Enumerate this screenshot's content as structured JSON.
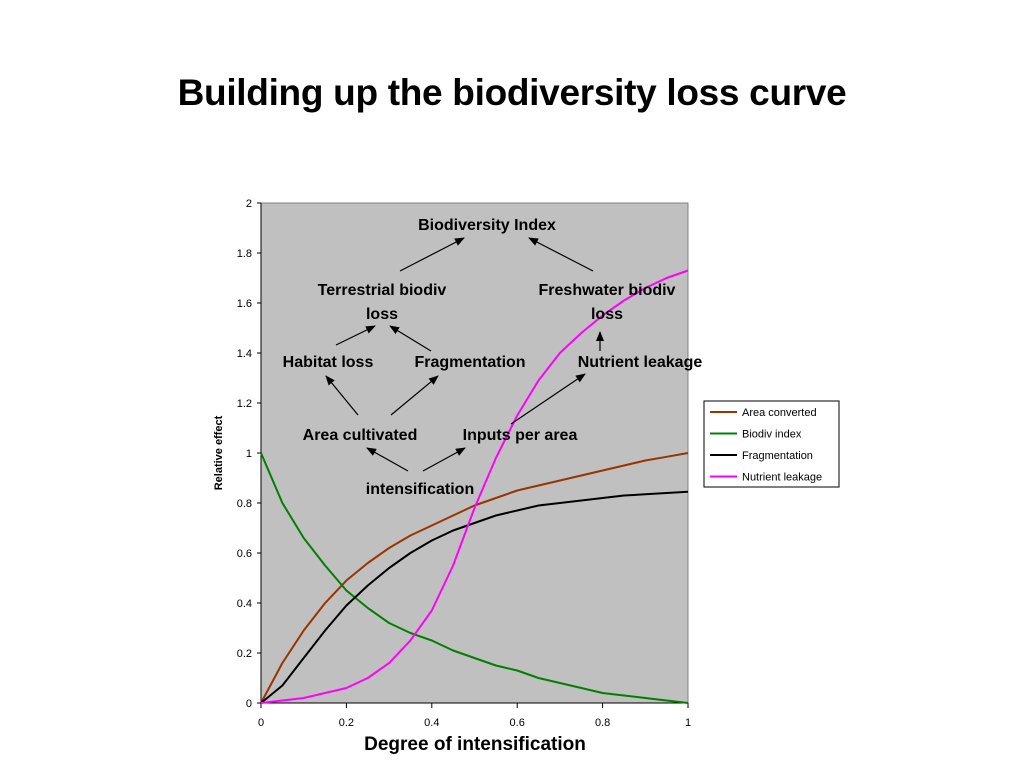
{
  "slide": {
    "title": "Building up the biodiversity loss curve"
  },
  "chart_data": {
    "type": "line",
    "xlabel": "Degree of intensification",
    "ylabel": "Relative effect",
    "xlim": [
      0,
      1
    ],
    "ylim": [
      0,
      2
    ],
    "x_ticks": [
      "0",
      "0.2",
      "0.4",
      "0.6",
      "0.8",
      "1"
    ],
    "y_ticks": [
      "0",
      "0.2",
      "0.4",
      "0.6",
      "0.8",
      "1",
      "1.2",
      "1.4",
      "1.6",
      "1.8",
      "2"
    ],
    "grid": false,
    "plot_background": "#c0c0c0",
    "legend_position": "right",
    "x": [
      0,
      0.05,
      0.1,
      0.15,
      0.2,
      0.25,
      0.3,
      0.35,
      0.4,
      0.45,
      0.5,
      0.55,
      0.6,
      0.65,
      0.7,
      0.75,
      0.8,
      0.85,
      0.9,
      0.95,
      1.0
    ],
    "series": [
      {
        "name": "Area converted",
        "color": "#993300",
        "values": [
          0,
          0.16,
          0.29,
          0.4,
          0.49,
          0.56,
          0.62,
          0.67,
          0.71,
          0.75,
          0.79,
          0.82,
          0.85,
          0.87,
          0.89,
          0.91,
          0.93,
          0.95,
          0.97,
          0.985,
          1.0
        ]
      },
      {
        "name": "Biodiv index",
        "color": "#008000",
        "values": [
          1.0,
          0.8,
          0.66,
          0.55,
          0.45,
          0.38,
          0.32,
          0.28,
          0.25,
          0.21,
          0.18,
          0.15,
          0.13,
          0.1,
          0.08,
          0.06,
          0.04,
          0.03,
          0.02,
          0.01,
          0.0
        ]
      },
      {
        "name": "Fragmentation",
        "color": "#000000",
        "values": [
          0,
          0.07,
          0.18,
          0.29,
          0.39,
          0.47,
          0.54,
          0.6,
          0.65,
          0.69,
          0.72,
          0.75,
          0.77,
          0.79,
          0.8,
          0.81,
          0.82,
          0.83,
          0.835,
          0.84,
          0.845
        ]
      },
      {
        "name": "Nutrient leakage",
        "color": "#ff00ff",
        "values": [
          0,
          0.01,
          0.02,
          0.04,
          0.06,
          0.1,
          0.16,
          0.25,
          0.37,
          0.55,
          0.78,
          0.98,
          1.15,
          1.29,
          1.4,
          1.48,
          1.55,
          1.61,
          1.66,
          1.7,
          1.73
        ]
      }
    ],
    "diagram": {
      "nodes": [
        {
          "id": "biodiversity-index",
          "lines": [
            "Biodiversity Index"
          ]
        },
        {
          "id": "terrestrial-biodiv-loss",
          "lines": [
            "Terrestrial biodiv",
            "loss"
          ]
        },
        {
          "id": "freshwater-biodiv-loss",
          "lines": [
            "Freshwater biodiv",
            "loss"
          ]
        },
        {
          "id": "habitat-loss",
          "lines": [
            "Habitat loss"
          ]
        },
        {
          "id": "fragmentation",
          "lines": [
            "Fragmentation"
          ]
        },
        {
          "id": "nutrient-leakage",
          "lines": [
            "Nutrient leakage"
          ]
        },
        {
          "id": "area-cultivated",
          "lines": [
            "Area cultivated"
          ]
        },
        {
          "id": "inputs-per-area",
          "lines": [
            "Inputs per area"
          ]
        },
        {
          "id": "intensification",
          "lines": [
            "intensification"
          ]
        }
      ]
    }
  }
}
